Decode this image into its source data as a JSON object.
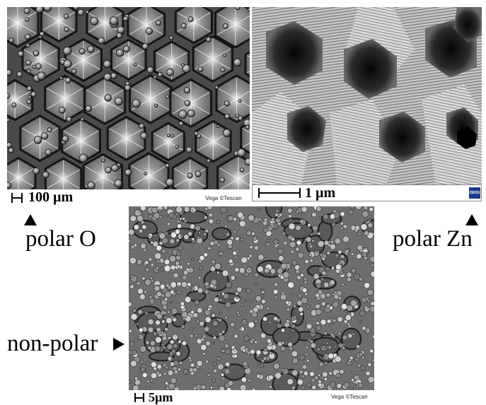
{
  "panels": {
    "polar_o": {
      "scalebar_text": "100 µm",
      "vendor_text": "Vega ©Tescan",
      "caption": "polar O"
    },
    "polar_zn": {
      "scalebar_text": "1 µm",
      "logo_text": "ZEISS",
      "caption": "polar Zn"
    },
    "non_polar": {
      "scalebar_text": "5µm",
      "vendor_text": "Vega ©Tescan",
      "caption": "non-polar"
    }
  }
}
